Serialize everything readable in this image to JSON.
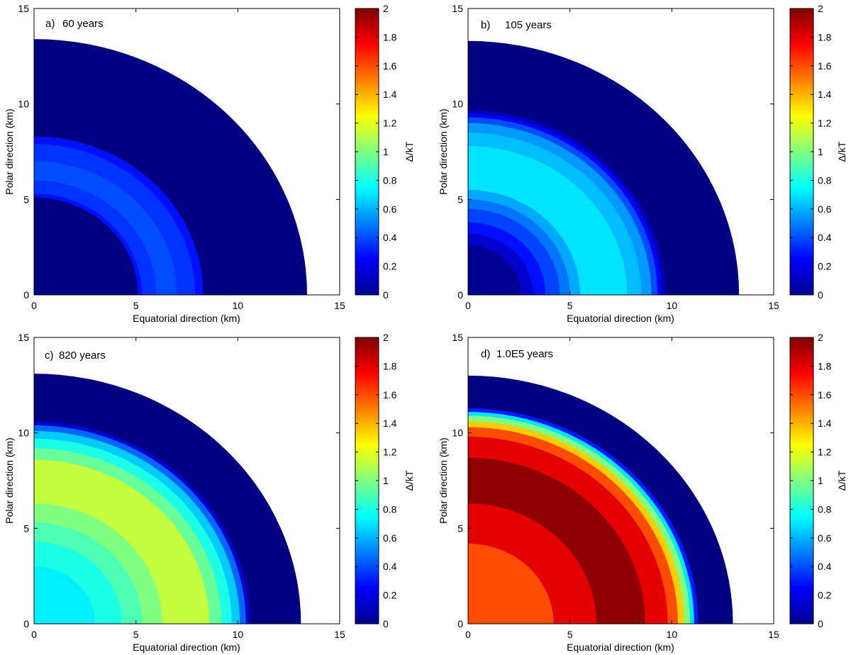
{
  "chart_data": [
    {
      "type": "heatmap",
      "panel_label": "a)",
      "title": "60 years",
      "xlabel": "Equatorial direction (km)",
      "ylabel": "Polar direction (km)",
      "xlim": [
        0,
        15
      ],
      "ylim": [
        0,
        15
      ],
      "xticks": [
        "0",
        "5",
        "10",
        "15"
      ],
      "yticks": [
        "0",
        "5",
        "10",
        "15"
      ],
      "star_radius_km": 13.4,
      "outer_value": 0.0,
      "bands": [
        {
          "r_outer": 13.4,
          "r_inner": 0.0,
          "value": 0.0
        },
        {
          "r_outer": 8.3,
          "r_inner": 5.1,
          "value": 0.28
        },
        {
          "r_outer": 7.9,
          "r_inner": 5.3,
          "value": 0.35
        },
        {
          "r_outer": 7.0,
          "r_inner": 6.0,
          "value": 0.4
        }
      ],
      "colorbar": {
        "label": "Δ/kT",
        "min": 0,
        "max": 2,
        "ticks": [
          "0",
          "0.2",
          "0.4",
          "0.6",
          "0.8",
          "1",
          "1.2",
          "1.4",
          "1.6",
          "1.8",
          "2"
        ]
      }
    },
    {
      "type": "heatmap",
      "panel_label": "b)",
      "title": "105 years",
      "xlabel": "Equatorial direction (km)",
      "ylabel": "Polar direction (km)",
      "xlim": [
        0,
        15
      ],
      "ylim": [
        0,
        15
      ],
      "xticks": [
        "0",
        "5",
        "10",
        "15"
      ],
      "yticks": [
        "0",
        "5",
        "10",
        "15"
      ],
      "star_radius_km": 13.3,
      "outer_value": 0.0,
      "bands": [
        {
          "r_outer": 13.3,
          "r_inner": 0.0,
          "value": 0.0
        },
        {
          "r_outer": 9.7,
          "r_inner": 0.0,
          "value": 0.1
        },
        {
          "r_outer": 9.5,
          "r_inner": 0.0,
          "value": 0.25
        },
        {
          "r_outer": 9.3,
          "r_inner": 0.0,
          "value": 0.4
        },
        {
          "r_outer": 9.0,
          "r_inner": 0.0,
          "value": 0.55
        },
        {
          "r_outer": 8.5,
          "r_inner": 0.0,
          "value": 0.62
        },
        {
          "r_outer": 7.8,
          "r_inner": 0.0,
          "value": 0.7
        },
        {
          "r_outer": 5.5,
          "r_inner": 0.0,
          "value": 0.58
        },
        {
          "r_outer": 5.0,
          "r_inner": 0.0,
          "value": 0.48
        },
        {
          "r_outer": 4.5,
          "r_inner": 0.0,
          "value": 0.38
        },
        {
          "r_outer": 3.8,
          "r_inner": 0.0,
          "value": 0.28
        },
        {
          "r_outer": 3.2,
          "r_inner": 0.0,
          "value": 0.15
        },
        {
          "r_outer": 2.6,
          "r_inner": 0.0,
          "value": 0.04
        }
      ],
      "colorbar": {
        "label": "Δ/kT",
        "min": 0,
        "max": 2,
        "ticks": [
          "0",
          "0.2",
          "0.4",
          "0.6",
          "0.8",
          "1",
          "1.2",
          "1.4",
          "1.6",
          "1.8",
          "2"
        ]
      }
    },
    {
      "type": "heatmap",
      "panel_label": "c)",
      "title": "820 years",
      "xlabel": "Equatorial direction (km)",
      "ylabel": "Polar direction (km)",
      "xlim": [
        0,
        15
      ],
      "ylim": [
        0,
        15
      ],
      "xticks": [
        "0",
        "5",
        "10",
        "15"
      ],
      "yticks": [
        "0",
        "5",
        "10",
        "15"
      ],
      "star_radius_km": 13.1,
      "outer_value": 0.0,
      "bands": [
        {
          "r_outer": 13.1,
          "r_inner": 0.0,
          "value": 0.0
        },
        {
          "r_outer": 10.6,
          "r_inner": 0.0,
          "value": 0.15
        },
        {
          "r_outer": 10.4,
          "r_inner": 0.0,
          "value": 0.45
        },
        {
          "r_outer": 10.1,
          "r_inner": 0.0,
          "value": 0.65
        },
        {
          "r_outer": 9.7,
          "r_inner": 0.0,
          "value": 0.8
        },
        {
          "r_outer": 9.2,
          "r_inner": 0.0,
          "value": 0.95
        },
        {
          "r_outer": 8.6,
          "r_inner": 0.0,
          "value": 1.13
        },
        {
          "r_outer": 6.3,
          "r_inner": 0.0,
          "value": 1.0
        },
        {
          "r_outer": 5.3,
          "r_inner": 0.0,
          "value": 0.9
        },
        {
          "r_outer": 4.3,
          "r_inner": 0.0,
          "value": 0.8
        },
        {
          "r_outer": 3.0,
          "r_inner": 0.0,
          "value": 0.72
        }
      ],
      "colorbar": {
        "label": "Δ/kT",
        "min": 0,
        "max": 2,
        "ticks": [
          "0",
          "0.2",
          "0.4",
          "0.6",
          "0.8",
          "1",
          "1.2",
          "1.4",
          "1.6",
          "1.8",
          "2"
        ]
      }
    },
    {
      "type": "heatmap",
      "panel_label": "d)",
      "title": "1.0E5 years",
      "xlabel": "Equatorial direction (km)",
      "ylabel": "Polar direction (km)",
      "xlim": [
        0,
        15
      ],
      "ylim": [
        0,
        15
      ],
      "xticks": [
        "0",
        "5",
        "10",
        "15"
      ],
      "yticks": [
        "0",
        "5",
        "10",
        "15"
      ],
      "star_radius_km": 13.0,
      "outer_value": 0.0,
      "bands": [
        {
          "r_outer": 13.0,
          "r_inner": 0.0,
          "value": 0.0
        },
        {
          "r_outer": 11.3,
          "r_inner": 0.0,
          "value": 0.3
        },
        {
          "r_outer": 11.1,
          "r_inner": 0.0,
          "value": 0.7
        },
        {
          "r_outer": 10.9,
          "r_inner": 0.0,
          "value": 1.0
        },
        {
          "r_outer": 10.6,
          "r_inner": 0.0,
          "value": 1.35
        },
        {
          "r_outer": 10.3,
          "r_inner": 0.0,
          "value": 1.6
        },
        {
          "r_outer": 9.8,
          "r_inner": 0.0,
          "value": 1.8
        },
        {
          "r_outer": 8.7,
          "r_inner": 0.0,
          "value": 1.97
        },
        {
          "r_outer": 6.3,
          "r_inner": 0.0,
          "value": 1.8
        },
        {
          "r_outer": 4.2,
          "r_inner": 0.0,
          "value": 1.6
        }
      ],
      "colorbar": {
        "label": "Δ/kT",
        "min": 0,
        "max": 2,
        "ticks": [
          "0",
          "0.2",
          "0.4",
          "0.6",
          "0.8",
          "1",
          "1.2",
          "1.4",
          "1.6",
          "1.8",
          "2"
        ]
      }
    }
  ]
}
